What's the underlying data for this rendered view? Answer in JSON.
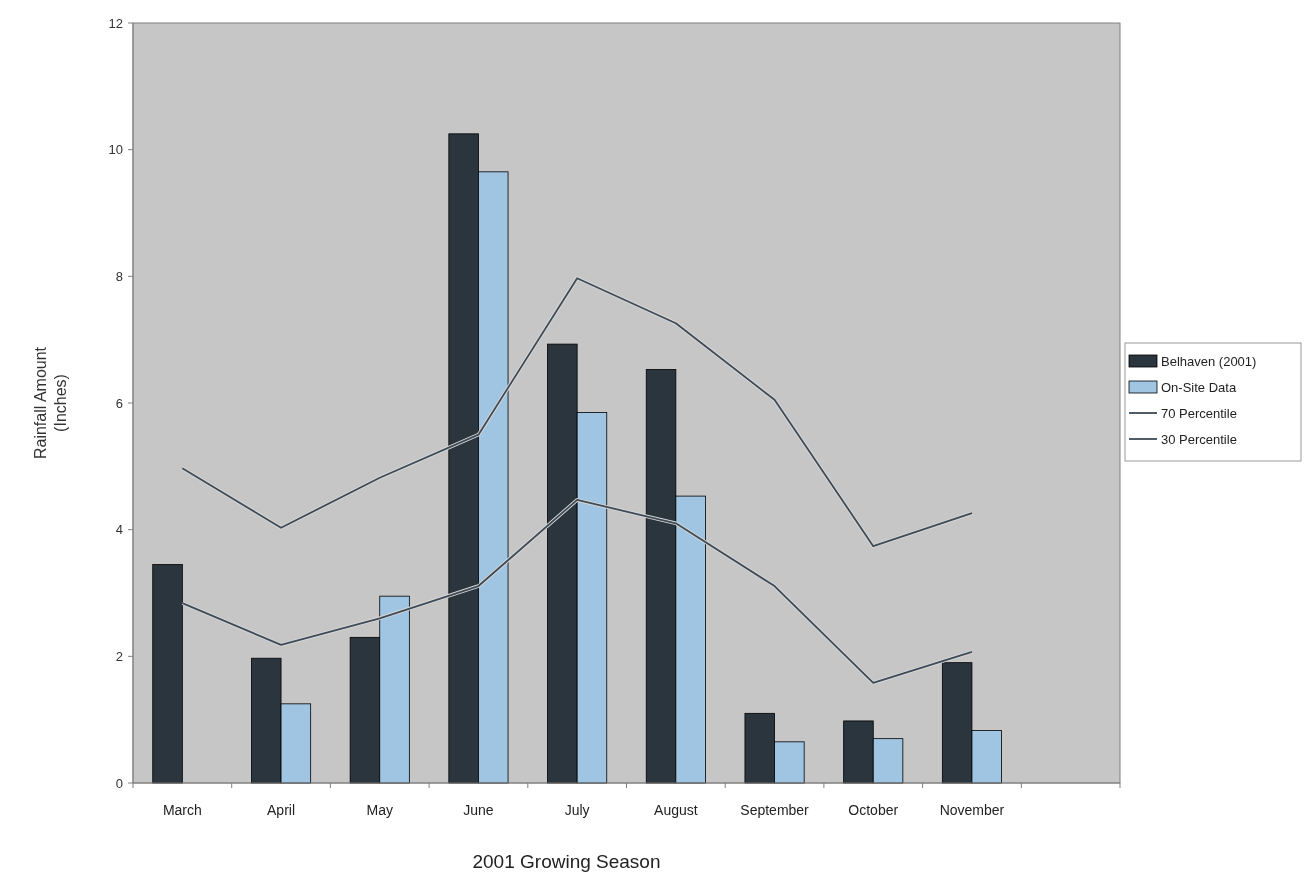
{
  "chart_data": {
    "type": "bar",
    "xlabel": "2001 Growing Season",
    "ylabel": "Rainfall Amount\n(Inches)",
    "categories": [
      "March",
      "April",
      "May",
      "June",
      "July",
      "August",
      "September",
      "October",
      "November",
      null
    ],
    "series": [
      {
        "name": "Belhaven (2001)",
        "color": "#2b353e",
        "values": [
          3.45,
          1.97,
          2.3,
          10.25,
          6.93,
          6.53,
          1.1,
          0.98,
          1.9,
          null
        ]
      },
      {
        "name": "On-Site Data",
        "color": "#9fc5e3",
        "values": [
          null,
          1.25,
          2.95,
          9.65,
          5.85,
          4.53,
          0.65,
          0.7,
          0.83,
          null
        ]
      },
      {
        "name": "70 Percentile",
        "type": "line",
        "color": "#3e4a56",
        "values": [
          4.97,
          4.03,
          4.82,
          5.5,
          7.97,
          7.26,
          6.05,
          3.74,
          4.26,
          null
        ]
      },
      {
        "name": "30 Percentile",
        "type": "line",
        "color": "#3e4a56",
        "values": [
          2.84,
          2.18,
          2.6,
          3.11,
          4.47,
          4.1,
          3.11,
          1.58,
          2.07,
          null
        ]
      }
    ],
    "ylim": [
      0,
      12
    ],
    "yticks": [
      0,
      2,
      4,
      6,
      8,
      10,
      12
    ],
    "grid": false,
    "legend": "right",
    "marker": "none"
  }
}
